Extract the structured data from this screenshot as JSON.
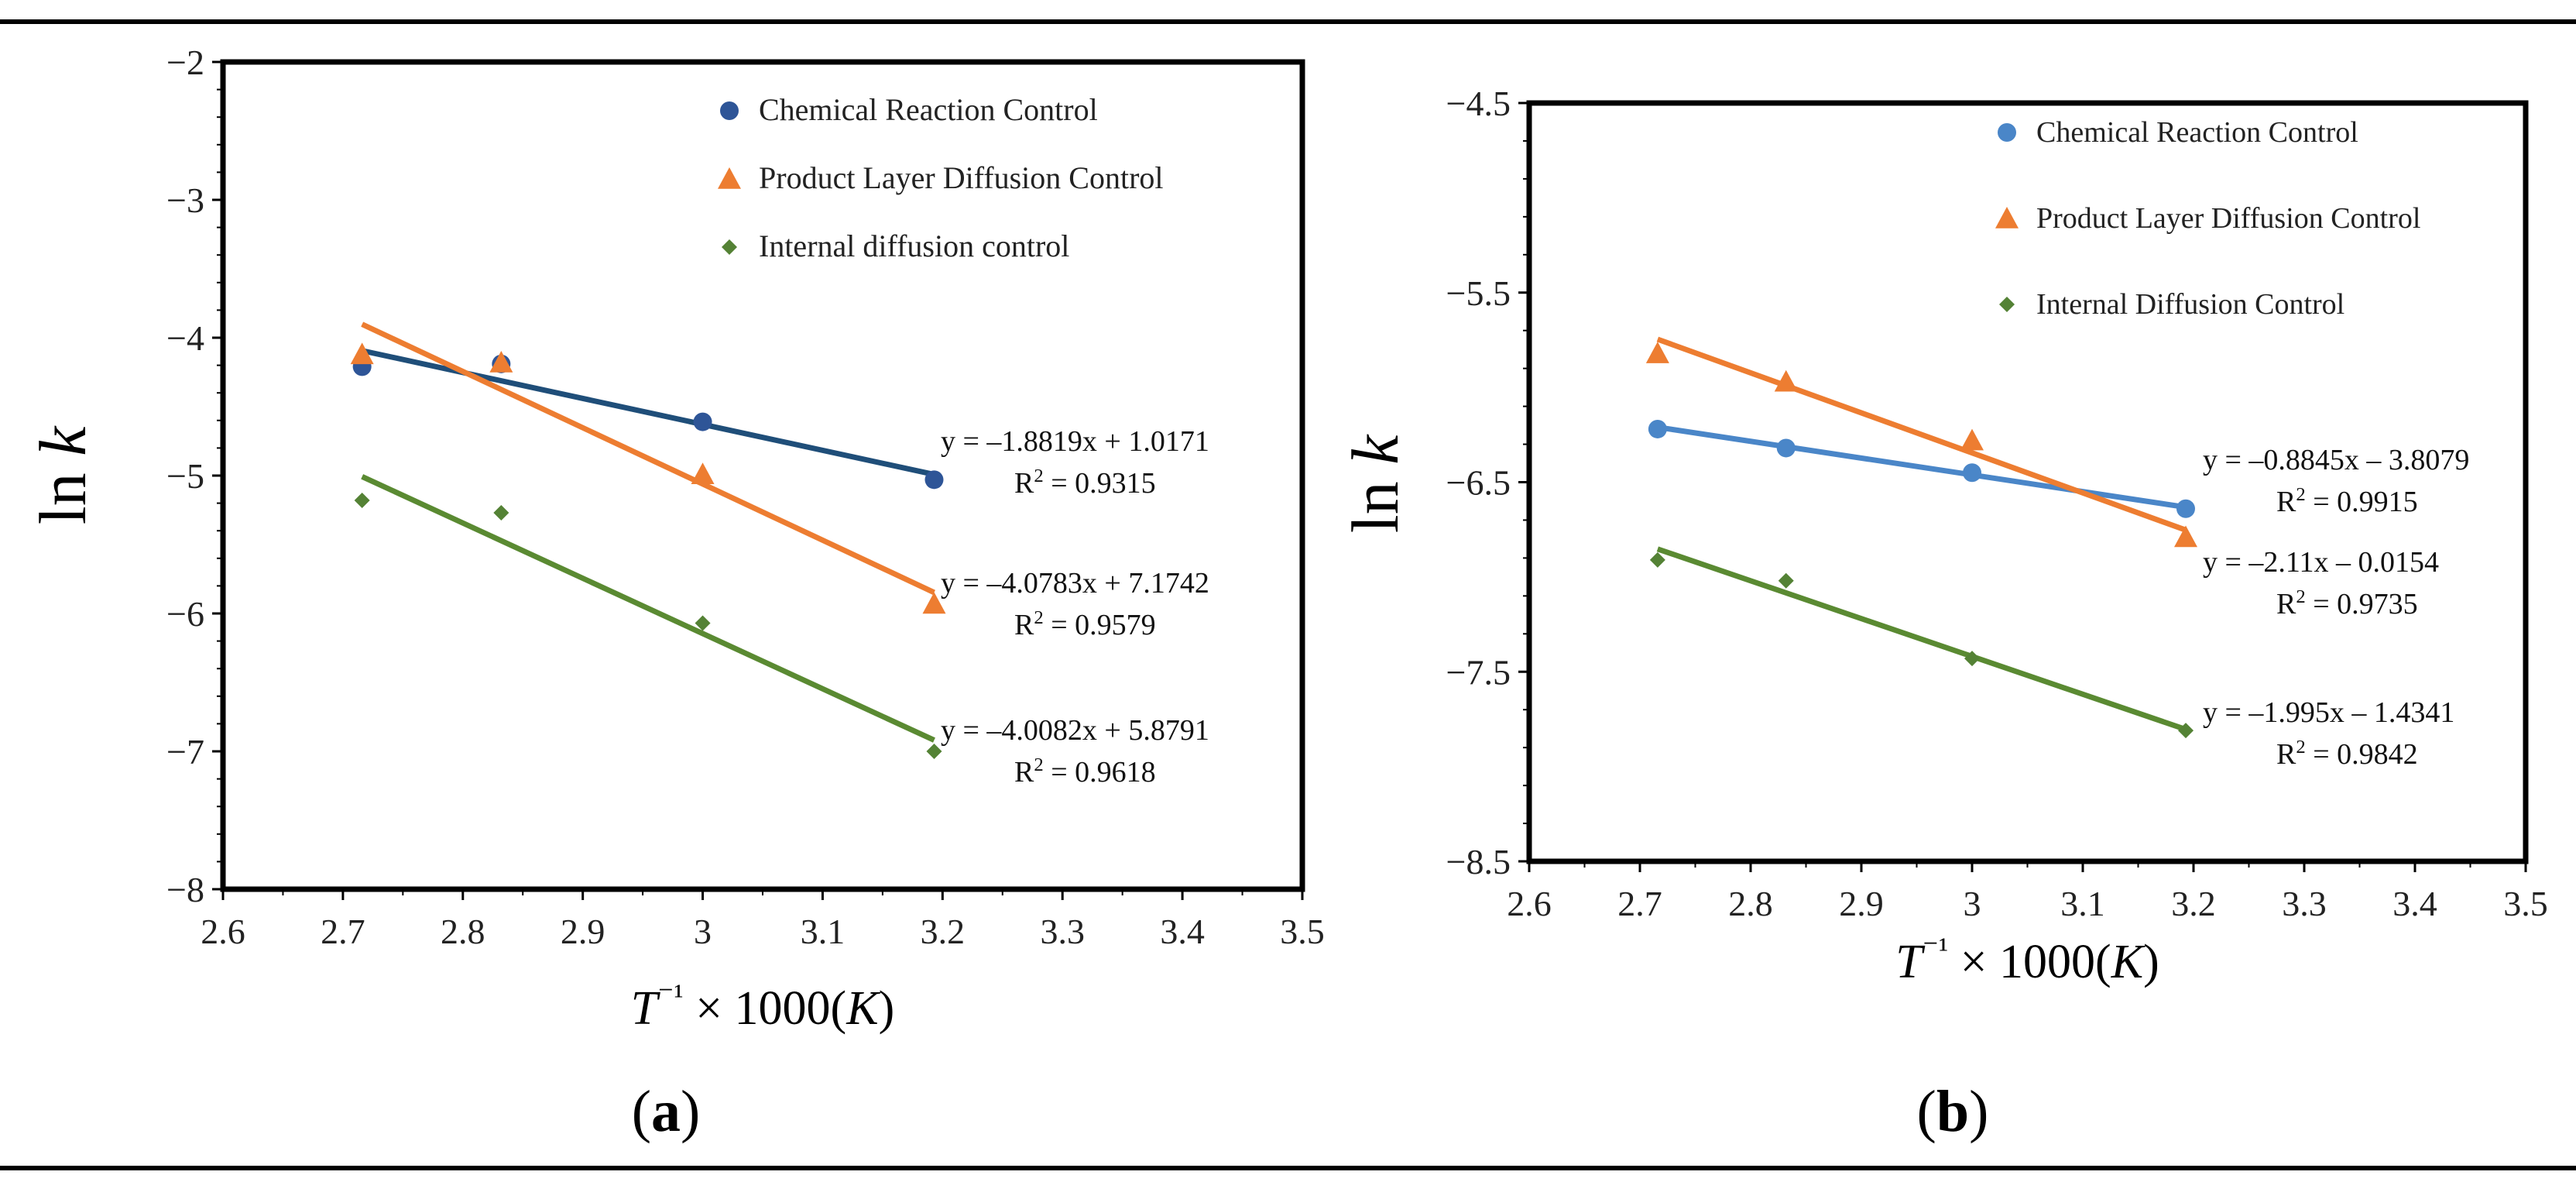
{
  "figure": {
    "panel_labels": [
      "a",
      "b"
    ]
  },
  "chart_data": [
    {
      "type": "scatter",
      "panel": "a",
      "ylabel": "ln k",
      "xlabel": "T⁻¹ × 1000(K)",
      "xlim": [
        2.6,
        3.5
      ],
      "ylim": [
        -8,
        -2
      ],
      "xticks": [
        "2.6",
        "2.7",
        "2.8",
        "2.9",
        "3",
        "3.1",
        "3.2",
        "3.3",
        "3.4",
        "3.5"
      ],
      "yticks": [
        "−8",
        "−7",
        "−6",
        "−5",
        "−4",
        "−3",
        "−2"
      ],
      "legend_position": "top-right",
      "series": [
        {
          "name": "Chemical Reaction Control",
          "color": "#2e5597",
          "line_color": "#1f4e79",
          "marker": "circle",
          "x": [
            2.716,
            2.832,
            3.0,
            3.193
          ],
          "y": [
            -4.21,
            -4.19,
            -4.61,
            -5.03
          ],
          "fit": {
            "slope": -1.8819,
            "intercept": 1.0171,
            "equation": "y = –1.8819x + 1.0171",
            "r2_value": "0.9315"
          }
        },
        {
          "name": "Product Layer Diffusion Control",
          "color": "#ed7d31",
          "line_color": "#ed7d31",
          "marker": "triangle",
          "x": [
            2.716,
            2.832,
            3.0,
            3.193
          ],
          "y": [
            -4.12,
            -4.18,
            -4.99,
            -5.93
          ],
          "fit": {
            "slope": -4.0783,
            "intercept": 7.1742,
            "equation": "y = –4.0783x + 7.1742",
            "r2_value": "0.9579"
          }
        },
        {
          "name": "Internal diffusion control",
          "color": "#548235",
          "line_color": "#5a8a32",
          "marker": "diamond",
          "x": [
            2.716,
            2.832,
            3.0,
            3.193
          ],
          "y": [
            -5.18,
            -5.27,
            -6.07,
            -7.0
          ],
          "fit": {
            "slope": -4.0082,
            "intercept": 5.8791,
            "equation": "y = –4.0082x + 5.8791",
            "r2_value": "0.9618"
          }
        }
      ]
    },
    {
      "type": "scatter",
      "panel": "b",
      "ylabel": "ln k",
      "xlabel": "T⁻¹ × 1000(K)",
      "xlim": [
        2.6,
        3.5
      ],
      "ylim": [
        -8.5,
        -4.5
      ],
      "xticks": [
        "2.6",
        "2.7",
        "2.8",
        "2.9",
        "3",
        "3.1",
        "3.2",
        "3.3",
        "3.4",
        "3.5"
      ],
      "yticks": [
        "−8.5",
        "−7.5",
        "−6.5",
        "−5.5",
        "−4.5"
      ],
      "legend_position": "top-right",
      "series": [
        {
          "name": "Chemical Reaction Control",
          "color": "#4a86c8",
          "line_color": "#4a86c8",
          "marker": "circle",
          "x": [
            2.716,
            2.832,
            3.0,
            3.193
          ],
          "y": [
            -6.22,
            -6.32,
            -6.45,
            -6.64
          ],
          "fit": {
            "slope": -0.8845,
            "intercept": -3.8079,
            "equation": "y = –0.8845x – 3.8079",
            "r2_value": "0.9915"
          }
        },
        {
          "name": "Product Layer Diffusion Control",
          "color": "#ed7d31",
          "line_color": "#ed7d31",
          "marker": "triangle",
          "x": [
            2.716,
            2.832,
            3.0,
            3.193
          ],
          "y": [
            -5.82,
            -5.97,
            -6.28,
            -6.79
          ],
          "fit": {
            "slope": -2.11,
            "intercept": -0.0154,
            "equation": "y = –2.11x – 0.0154",
            "r2_value": "0.9735"
          }
        },
        {
          "name": "Internal Diffusion Control",
          "color": "#548235",
          "line_color": "#5a8a32",
          "marker": "diamond",
          "x": [
            2.716,
            2.832,
            3.0,
            3.193
          ],
          "y": [
            -6.91,
            -7.02,
            -7.43,
            -7.81
          ],
          "fit": {
            "slope": -1.995,
            "intercept": -1.4341,
            "equation": "y = –1.995x – 1.4341",
            "r2_value": "0.9842"
          }
        }
      ]
    }
  ]
}
